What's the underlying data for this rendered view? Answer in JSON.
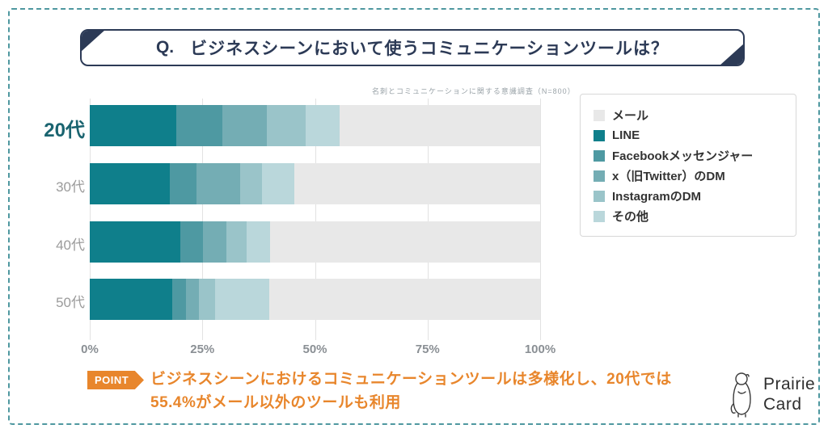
{
  "title": {
    "q": "Q.",
    "text": "ビジネスシーンにおいて使うコミュニケーションツールは？"
  },
  "caption": "名刺とコミュニケーションに関する意識調査（N=800）",
  "chart_data": {
    "type": "bar",
    "stacked": true,
    "orientation": "horizontal",
    "categories": [
      "20代",
      "30代",
      "40代",
      "50代"
    ],
    "highlighted_category": "20代",
    "series": [
      {
        "name": "LINE",
        "color": "#0f7f8b",
        "values": [
          19.2,
          17.8,
          20.1,
          18.3
        ]
      },
      {
        "name": "Facebookメッセンジャー",
        "color": "#4e99a2",
        "values": [
          10.2,
          5.9,
          5.1,
          3.0
        ]
      },
      {
        "name": "x（旧Twitter）のDM",
        "color": "#74adb4",
        "values": [
          10.0,
          9.7,
          5.1,
          3.0
        ]
      },
      {
        "name": "InstagramのDM",
        "color": "#9ac4c9",
        "values": [
          8.5,
          4.9,
          4.5,
          3.6
        ]
      },
      {
        "name": "その他",
        "color": "#bad7db",
        "values": [
          7.5,
          7.1,
          5.2,
          12.0
        ]
      },
      {
        "name": "メール",
        "color": "#e8e8e8",
        "values": [
          44.6,
          54.6,
          60.0,
          60.1
        ]
      }
    ],
    "x_ticks": [
      "0%",
      "25%",
      "50%",
      "75%",
      "100%"
    ],
    "xlim": [
      0,
      100
    ],
    "grid": true,
    "legend_position": "right"
  },
  "legend": {
    "items": [
      {
        "label": "メール",
        "color": "#e8e8e8"
      },
      {
        "label": "LINE",
        "color": "#0f7f8b"
      },
      {
        "label": "Facebookメッセンジャー",
        "color": "#4e99a2"
      },
      {
        "label": "x（旧Twitter）のDM",
        "color": "#74adb4"
      },
      {
        "label": "InstagramのDM",
        "color": "#9ac4c9"
      },
      {
        "label": "その他",
        "color": "#bad7db"
      }
    ]
  },
  "point": {
    "badge": "POINT",
    "line1": "ビジネスシーンにおけるコミュニケーションツールは多様化し、20代では",
    "line2": "55.4%がメール以外のツールも利用"
  },
  "logo": {
    "line1": "Prairie",
    "line2": "Card"
  },
  "colors": {
    "navy": "#2c3a56",
    "accent_orange": "#e8862c",
    "border_teal": "#4f98a0",
    "highlight_label": "#1a6470"
  }
}
